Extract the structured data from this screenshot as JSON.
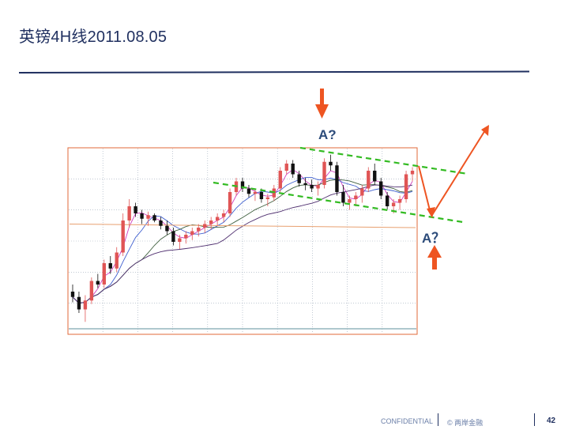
{
  "slide": {
    "title": "英镑4H线2011.08.05"
  },
  "annotations": {
    "label_top": "A?",
    "label_bottom": "A？"
  },
  "footer": {
    "confidential": "CONFIDENTIAL",
    "copyright": "© 两岸金融",
    "page_number": "42"
  },
  "colors": {
    "title": "#1f2f5f",
    "frame": "#e06a3a",
    "grid": "#9aa8b8",
    "bull_candle": "#e05555",
    "bear_candle": "#111111",
    "channel": "#33bb22",
    "arrow": "#ee5522",
    "label": "#2c4b7a"
  },
  "chart_data": {
    "type": "candlestick",
    "title": "",
    "xlabel": "",
    "ylabel": "",
    "ylim": [
      0,
      100
    ],
    "ohlc": [
      [
        20,
        24,
        14,
        17
      ],
      [
        17,
        20,
        8,
        10
      ],
      [
        10,
        18,
        3,
        15
      ],
      [
        15,
        28,
        13,
        26
      ],
      [
        26,
        30,
        22,
        24
      ],
      [
        24,
        38,
        22,
        36
      ],
      [
        36,
        40,
        30,
        33
      ],
      [
        33,
        45,
        31,
        42
      ],
      [
        42,
        64,
        40,
        60
      ],
      [
        60,
        72,
        56,
        68
      ],
      [
        68,
        70,
        62,
        64
      ],
      [
        64,
        66,
        58,
        61
      ],
      [
        61,
        65,
        57,
        63
      ],
      [
        63,
        64,
        59,
        60
      ],
      [
        60,
        62,
        55,
        57
      ],
      [
        57,
        60,
        52,
        54
      ],
      [
        54,
        56,
        46,
        48
      ],
      [
        48,
        52,
        44,
        50
      ],
      [
        50,
        54,
        47,
        52
      ],
      [
        52,
        56,
        49,
        54
      ],
      [
        54,
        58,
        51,
        56
      ],
      [
        56,
        60,
        53,
        58
      ],
      [
        58,
        62,
        55,
        60
      ],
      [
        60,
        64,
        57,
        62
      ],
      [
        62,
        66,
        59,
        64
      ],
      [
        64,
        78,
        62,
        76
      ],
      [
        76,
        84,
        74,
        82
      ],
      [
        82,
        84,
        76,
        78
      ],
      [
        78,
        80,
        73,
        75
      ],
      [
        75,
        78,
        71,
        76
      ],
      [
        76,
        78,
        70,
        72
      ],
      [
        72,
        75,
        68,
        73
      ],
      [
        73,
        80,
        71,
        78
      ],
      [
        78,
        90,
        76,
        88
      ],
      [
        88,
        94,
        86,
        92
      ],
      [
        92,
        94,
        84,
        86
      ],
      [
        86,
        88,
        79,
        81
      ],
      [
        81,
        84,
        77,
        80
      ],
      [
        80,
        83,
        76,
        78
      ],
      [
        78,
        82,
        74,
        80
      ],
      [
        80,
        95,
        78,
        93
      ],
      [
        93,
        97,
        88,
        91
      ],
      [
        91,
        93,
        74,
        76
      ],
      [
        76,
        80,
        68,
        70
      ],
      [
        70,
        74,
        66,
        72
      ],
      [
        72,
        76,
        68,
        74
      ],
      [
        74,
        80,
        70,
        78
      ],
      [
        78,
        90,
        76,
        88
      ],
      [
        88,
        92,
        80,
        82
      ],
      [
        82,
        84,
        72,
        74
      ],
      [
        74,
        76,
        66,
        68
      ],
      [
        68,
        72,
        64,
        70
      ],
      [
        70,
        74,
        66,
        72
      ],
      [
        72,
        88,
        70,
        86
      ],
      [
        86,
        90,
        82,
        88
      ]
    ],
    "channel": {
      "upper": [
        [
          40,
          76
        ],
        [
          96,
          66
        ]
      ],
      "lower": [
        [
          40,
          70
        ],
        [
          96,
          46
        ]
      ]
    }
  }
}
